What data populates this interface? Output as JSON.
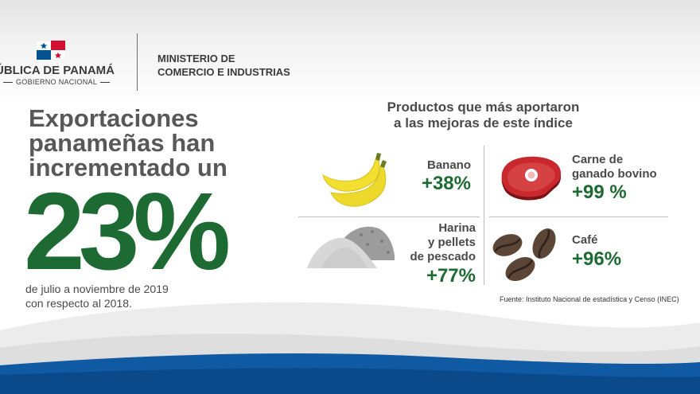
{
  "header": {
    "republica": "ÚBLICA DE PANAMÁ",
    "gobierno": "GOBIERNO NACIONAL",
    "ministerio_l1": "MINISTERIO DE",
    "ministerio_l2": "COMERCIO E INDUSTRIAS"
  },
  "headline": {
    "line1": "Exportaciones",
    "line2": "panameñas han",
    "line3": "incrementado un",
    "value": "23%",
    "period_l1": "de julio a noviembre de 2019",
    "period_l2": "con respecto al 2018."
  },
  "products": {
    "title_l1": "Productos que más aportaron",
    "title_l2": "a las mejoras de este índice",
    "banano": {
      "name": "Banano",
      "value": "+38%"
    },
    "carne": {
      "name_l1": "Carne de",
      "name_l2": "ganado bovino",
      "value": "+99 %"
    },
    "harina": {
      "name_l1": "Harina",
      "name_l2": "y pellets",
      "name_l3": "de pescado",
      "value": "+77%"
    },
    "cafe": {
      "name": "Café",
      "value": "+96%"
    }
  },
  "source": "Fuente: Instituto Nacional de estadística y Censo (INEC)",
  "colors": {
    "accent_green": "#1d6b33",
    "wave_blue": "#0f5aa3",
    "banana_yellow": "#f2df2f",
    "meat_red": "#c8282e"
  }
}
